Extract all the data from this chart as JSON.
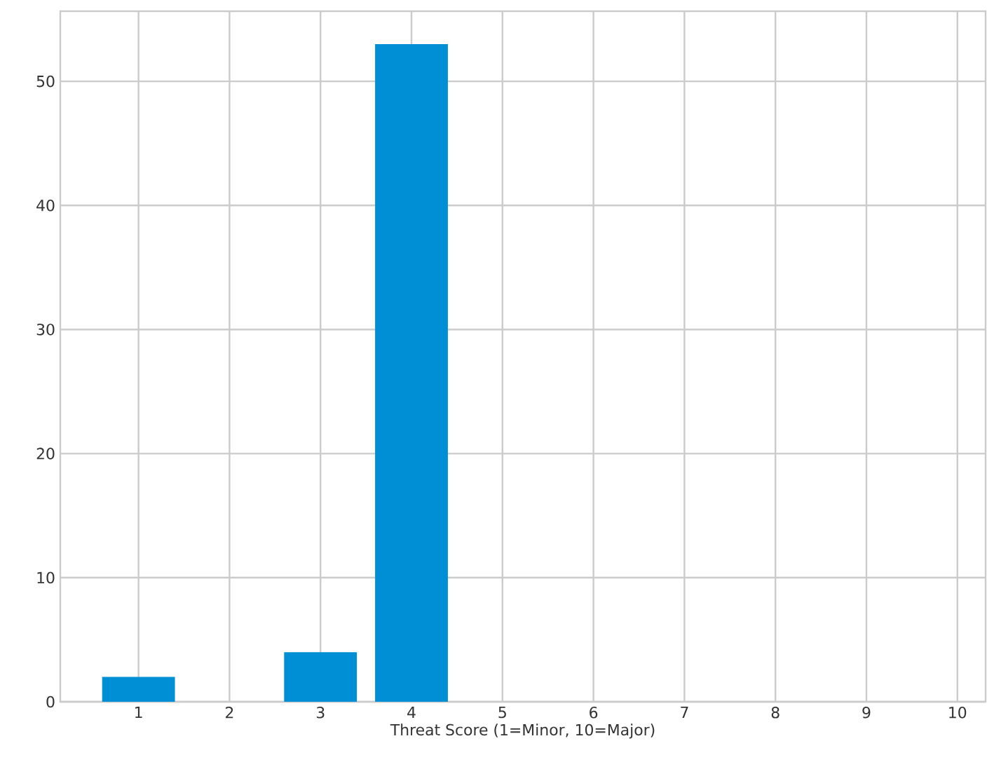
{
  "chart_data": {
    "type": "bar",
    "xlabel": "Threat Score (1=Minor, 10=Major)",
    "x": [
      1,
      3,
      4
    ],
    "values": [
      2,
      4,
      53
    ],
    "color": "#008fd5",
    "xlim": [
      0.14,
      10.31
    ],
    "ylim": [
      0,
      55.65
    ],
    "xticks": [
      1,
      2,
      3,
      4,
      5,
      6,
      7,
      8,
      9,
      10
    ],
    "yticks": [
      0,
      10,
      20,
      30,
      40,
      50
    ],
    "grid": true
  }
}
